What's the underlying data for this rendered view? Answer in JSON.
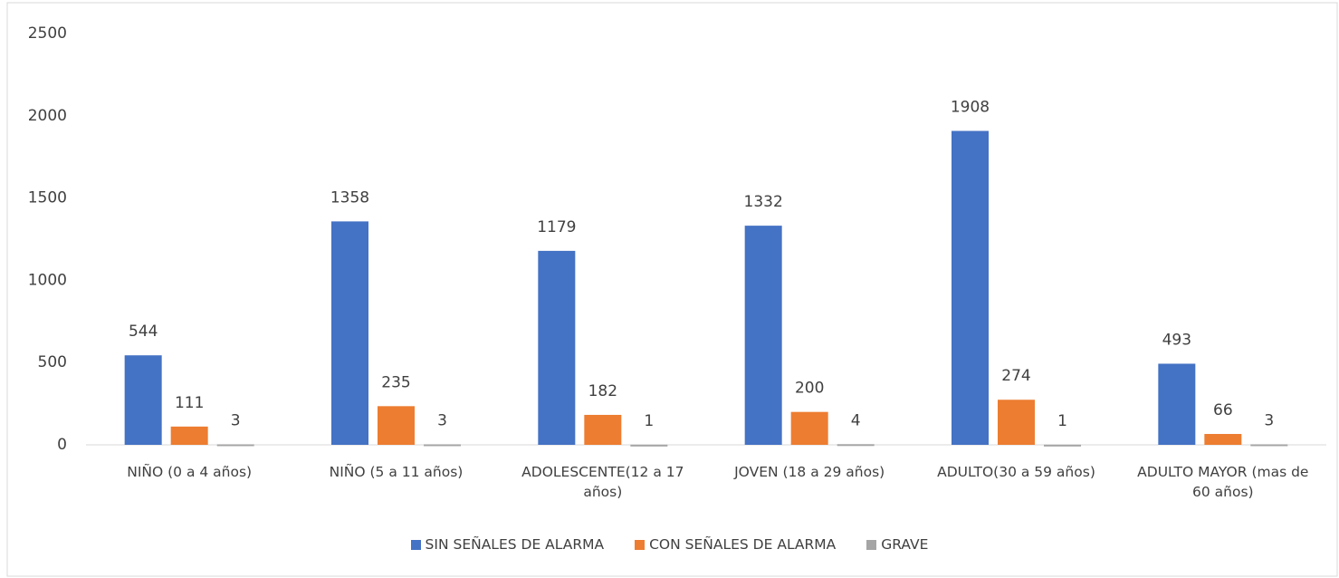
{
  "chart_data": {
    "type": "bar",
    "categories": [
      "NIÑO (0 a 4 años)",
      "NIÑO (5 a 11 años)",
      "ADOLESCENTE(12 a 17 años)",
      "JOVEN (18 a 29 años)",
      "ADULTO(30 a 59 años)",
      "ADULTO MAYOR (mas de 60 años)"
    ],
    "series": [
      {
        "name": "SIN SEÑALES DE ALARMA",
        "color": "#4472c4",
        "values": [
          544,
          1358,
          1179,
          1332,
          1908,
          493
        ]
      },
      {
        "name": "CON SEÑALES DE ALARMA",
        "color": "#ed7d31",
        "values": [
          111,
          235,
          182,
          200,
          274,
          66
        ]
      },
      {
        "name": "GRAVE",
        "color": "#a5a5a5",
        "values": [
          3,
          3,
          1,
          4,
          1,
          3
        ]
      }
    ],
    "ylim": [
      0,
      2500
    ],
    "yticks": [
      0,
      500,
      1000,
      1500,
      2000,
      2500
    ],
    "grid": false,
    "legend": "bottom"
  }
}
